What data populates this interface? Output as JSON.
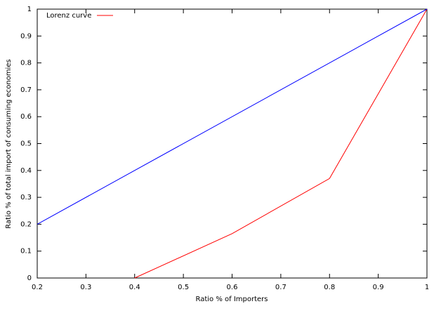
{
  "chart_data": {
    "type": "line",
    "x_label": "Ratio % of Importers",
    "y_label": "Ratio % of total import of consuming economies",
    "series": [
      {
        "name": "Lorenz curve",
        "color": "#ff0000",
        "x": [
          0.4,
          0.6,
          0.8,
          1
        ],
        "values": [
          0,
          0.165,
          0.37,
          1
        ]
      },
      {
        "color": "#0000ff",
        "x": [
          0.2,
          1
        ],
        "values": [
          0.2,
          1
        ]
      }
    ],
    "xlim": [
      0.2,
      1
    ],
    "ylim": [
      0,
      1
    ],
    "xticks": [
      0.2,
      0.3,
      0.4,
      0.5,
      0.6,
      0.7,
      0.8,
      0.9,
      1
    ],
    "yticks": [
      0,
      0.1,
      0.2,
      0.3,
      0.4,
      0.5,
      0.6,
      0.7,
      0.8,
      0.9,
      1
    ],
    "legend": "top-left"
  }
}
